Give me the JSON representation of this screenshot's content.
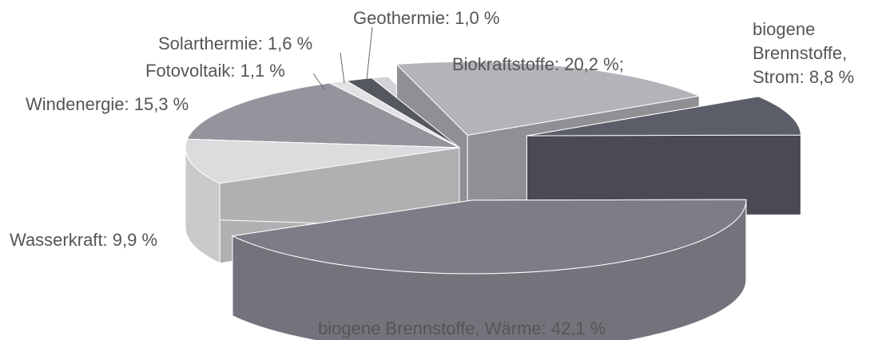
{
  "chart_data": {
    "type": "pie3d",
    "values": [
      20.2,
      8.8,
      42.1,
      9.9,
      15.3,
      1.1,
      1.6,
      1.0
    ],
    "value_labels": [
      "Biokraftstoffe: 20,2 %;",
      "biogene\nBrennstoffe,\nStrom: 8,8 %",
      "biogene Brennstoffe, Wärme: 42,1 %",
      "Wasserkraft: 9,9 %",
      "Windenergie: 15,3 %",
      "Fotovoltaik: 1,1 %",
      "Solarthermie: 1,6 %",
      "Geothermie: 1,0 %"
    ],
    "colors": [
      "#b4b3b9",
      "#5b5d69",
      "#7e7d87",
      "#dcdcdf",
      "#95939b",
      "#e2e2e4",
      "#55575f",
      "#d2d2d6"
    ]
  }
}
